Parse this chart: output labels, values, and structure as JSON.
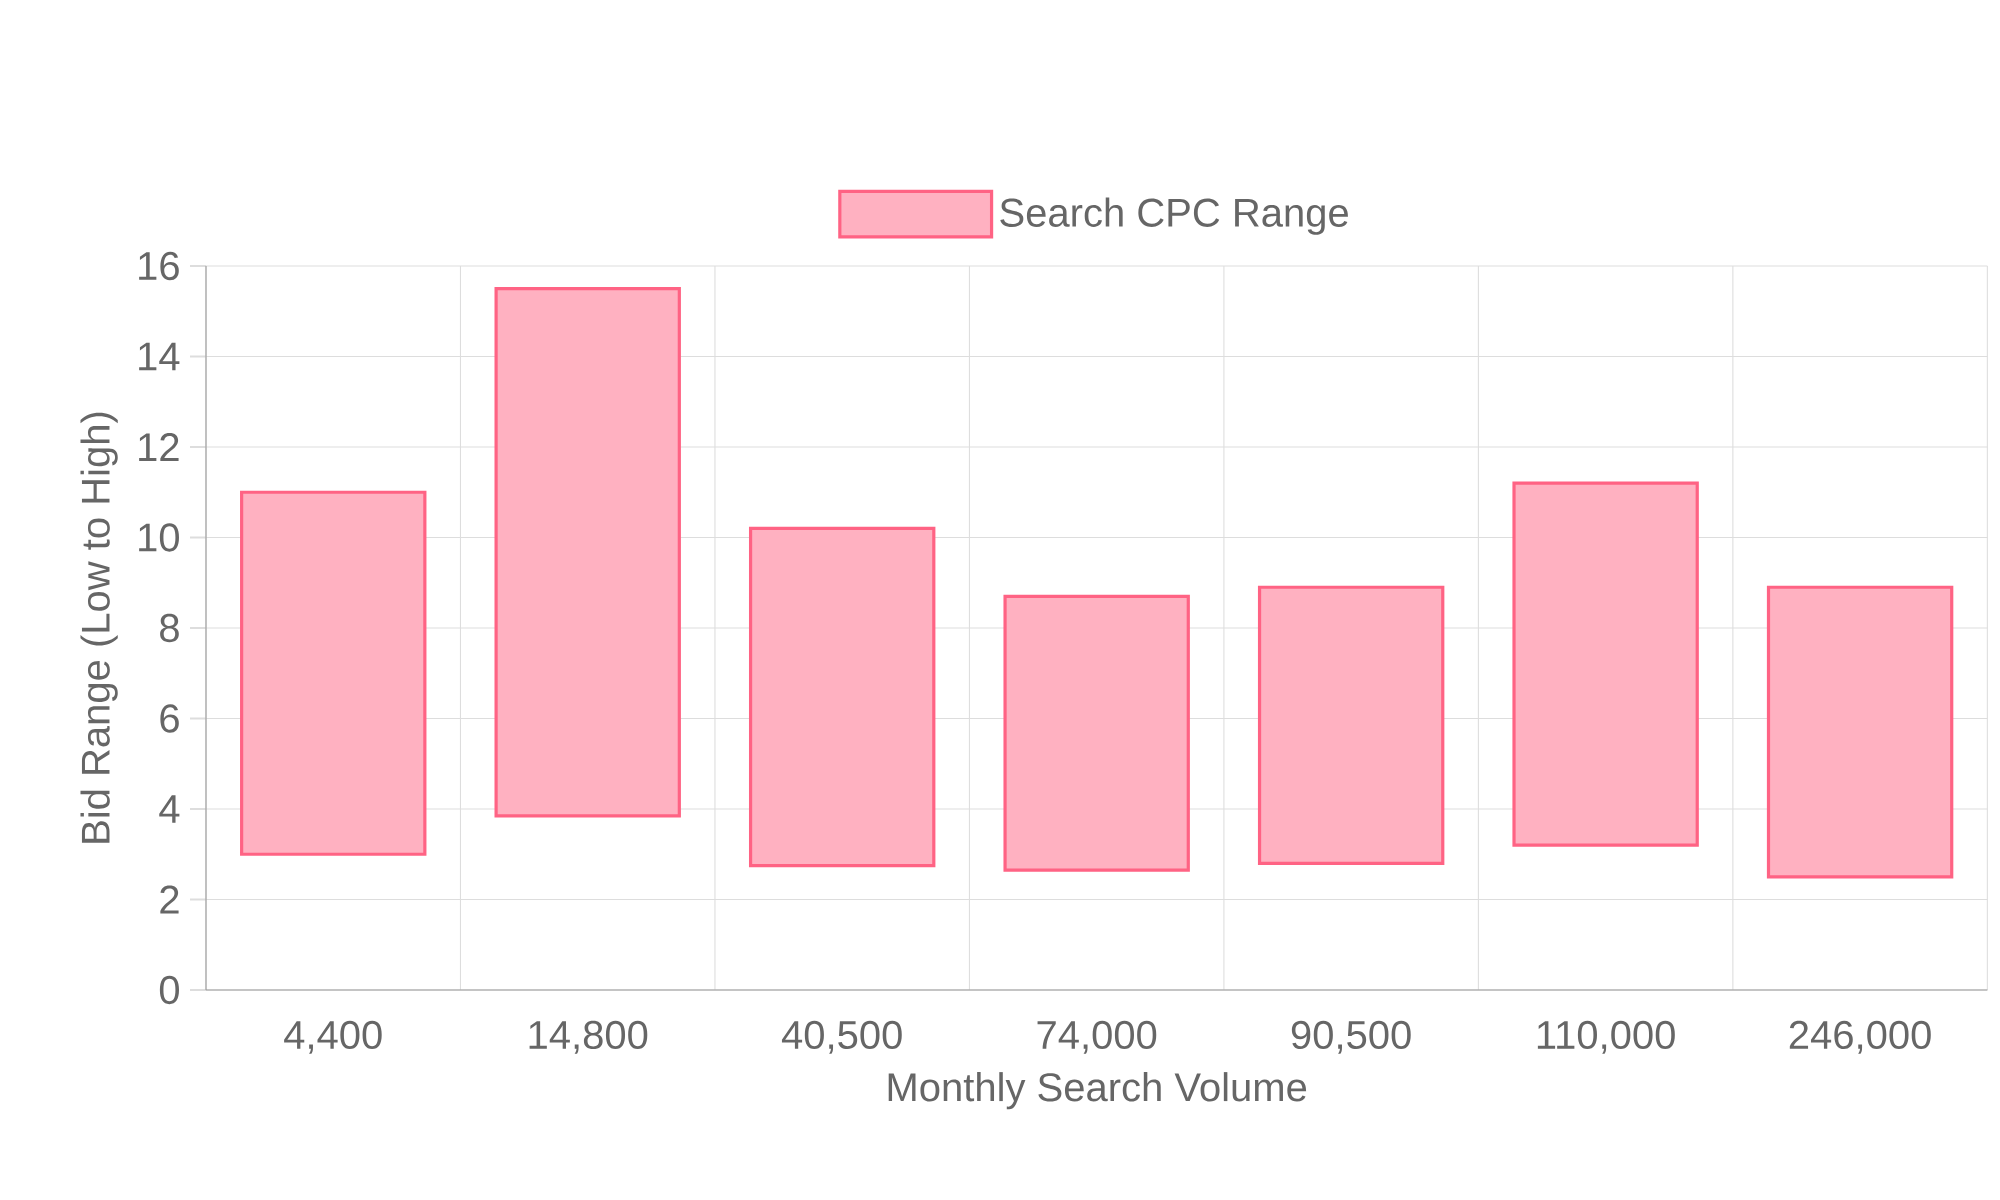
{
  "chart_data": {
    "type": "bar",
    "xlabel": "Monthly Search Volume",
    "ylabel": "Bid Range (Low to High)",
    "categories": [
      "4,400",
      "14,800",
      "40,500",
      "74,000",
      "90,500",
      "110,000",
      "246,000"
    ],
    "series": [
      {
        "name": "Search CPC Range",
        "color": "#ff6384",
        "base": [
          3,
          3.85,
          2.75,
          2.65,
          2.8,
          3.2,
          2.5
        ],
        "values": [
          8,
          11.65,
          7.45,
          6.05,
          6.1,
          8,
          6.4
        ]
      }
    ],
    "ylim": [
      0,
      16
    ],
    "yticks": [
      0,
      2,
      4,
      6,
      8,
      10,
      12,
      14,
      16
    ],
    "grid": true,
    "legend": "top"
  }
}
